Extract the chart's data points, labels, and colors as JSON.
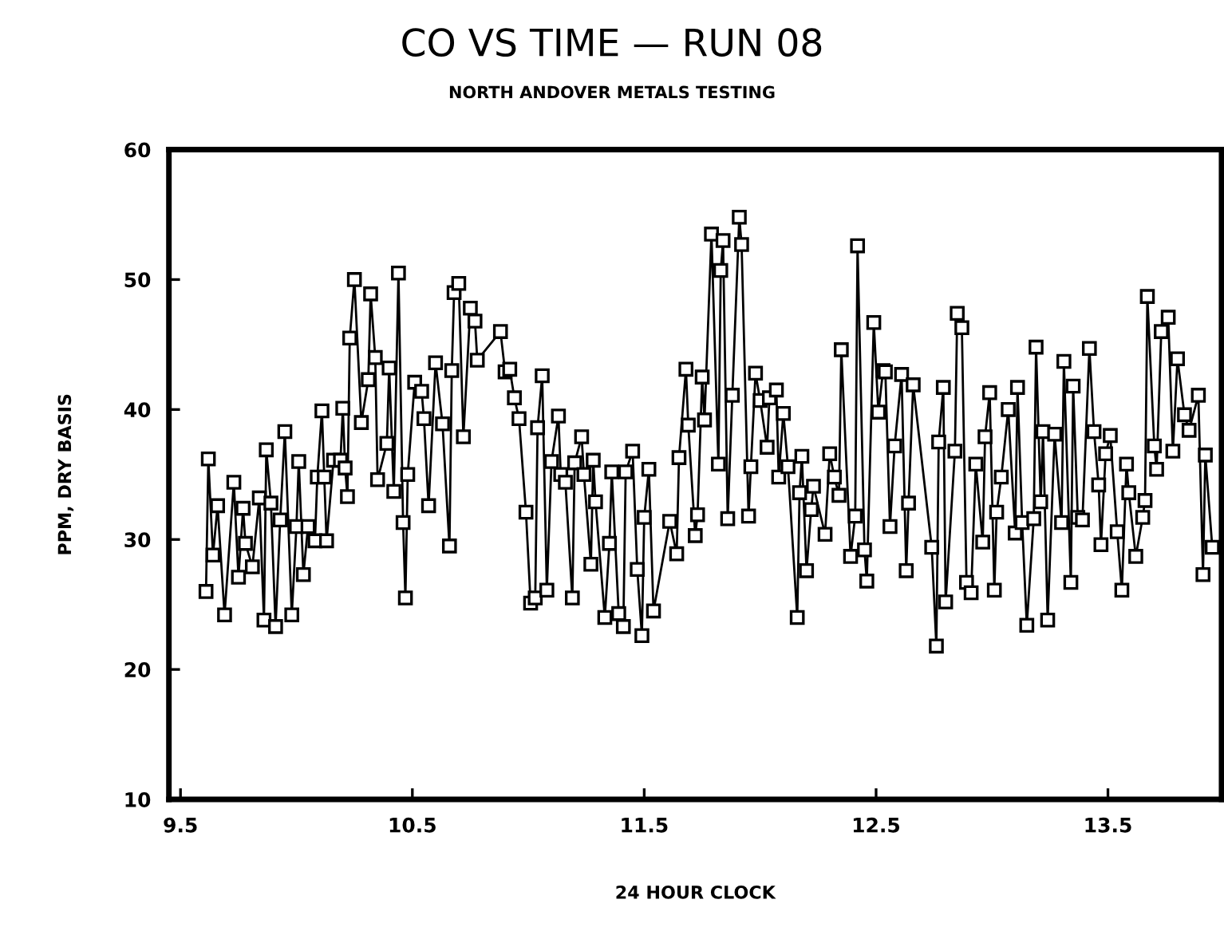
{
  "chart_data": {
    "type": "line",
    "title": "CO VS TIME — RUN 08",
    "subtitle": "NORTH ANDOVER METALS TESTING",
    "xlabel": "24 HOUR CLOCK",
    "ylabel": "PPM, DRY BASIS",
    "xlim": [
      9.45,
      13.99
    ],
    "xticks": [
      9.5,
      10.5,
      11.5,
      12.5,
      13.5
    ],
    "ylim": [
      10,
      60
    ],
    "yticks": [
      10,
      20,
      30,
      40,
      50,
      60
    ],
    "grid": false,
    "legend": false,
    "marker": "square",
    "line_style": "solid",
    "series": [
      {
        "color": "#000000",
        "x": [
          9.61,
          9.62,
          9.64,
          9.66,
          9.69,
          9.73,
          9.75,
          9.77,
          9.78,
          9.81,
          9.84,
          9.86,
          9.87,
          9.89,
          9.91,
          9.93,
          9.95,
          9.98,
          10.0,
          10.01,
          10.03,
          10.05,
          10.08,
          10.09,
          10.11,
          10.12,
          10.13,
          10.16,
          10.19,
          10.2,
          10.21,
          10.22,
          10.23,
          10.25,
          10.28,
          10.31,
          10.32,
          10.34,
          10.35,
          10.39,
          10.4,
          10.42,
          10.44,
          10.46,
          10.47,
          10.48,
          10.51,
          10.54,
          10.55,
          10.57,
          10.6,
          10.63,
          10.66,
          10.67,
          10.68,
          10.7,
          10.72,
          10.75,
          10.77,
          10.78,
          10.88,
          10.9,
          10.92,
          10.94,
          10.96,
          10.99,
          11.01,
          11.03,
          11.04,
          11.06,
          11.08,
          11.1,
          11.13,
          11.14,
          11.16,
          11.19,
          11.2,
          11.23,
          11.24,
          11.27,
          11.28,
          11.29,
          11.33,
          11.35,
          11.36,
          11.39,
          11.41,
          11.42,
          11.45,
          11.47,
          11.49,
          11.5,
          11.52,
          11.54,
          11.61,
          11.64,
          11.65,
          11.68,
          11.69,
          11.72,
          11.73,
          11.75,
          11.76,
          11.79,
          11.82,
          11.83,
          11.84,
          11.86,
          11.88,
          11.91,
          11.92,
          11.95,
          11.96,
          11.98,
          12.0,
          12.03,
          12.04,
          12.07,
          12.08,
          12.1,
          12.12,
          12.16,
          12.17,
          12.18,
          12.2,
          12.22,
          12.23,
          12.28,
          12.3,
          12.32,
          12.34,
          12.35,
          12.39,
          12.41,
          12.42,
          12.45,
          12.46,
          12.49,
          12.51,
          12.53,
          12.54,
          12.56,
          12.58,
          12.61,
          12.63,
          12.64,
          12.66,
          12.74,
          12.76,
          12.77,
          12.79,
          12.8,
          12.84,
          12.85,
          12.87,
          12.89,
          12.91,
          12.93,
          12.96,
          12.97,
          12.99,
          13.01,
          13.02,
          13.04,
          13.07,
          13.1,
          13.11,
          13.13,
          13.15,
          13.18,
          13.19,
          13.21,
          13.22,
          13.24,
          13.27,
          13.3,
          13.31,
          13.34,
          13.35,
          13.37,
          13.39,
          13.42,
          13.44,
          13.46,
          13.47,
          13.49,
          13.51,
          13.54,
          13.56,
          13.58,
          13.59,
          13.62,
          13.65,
          13.66,
          13.67,
          13.7,
          13.71,
          13.73,
          13.76,
          13.78,
          13.8,
          13.83,
          13.85,
          13.89,
          13.91,
          13.92,
          13.95
        ],
        "values": [
          26.0,
          36.2,
          28.8,
          32.6,
          24.2,
          34.4,
          27.1,
          32.4,
          29.7,
          27.9,
          33.2,
          23.8,
          36.9,
          32.8,
          23.3,
          31.5,
          38.3,
          24.2,
          31.0,
          36.0,
          27.3,
          31.0,
          29.9,
          34.8,
          39.9,
          34.8,
          29.9,
          36.1,
          36.1,
          40.1,
          35.5,
          33.3,
          45.5,
          50.0,
          39.0,
          42.3,
          48.9,
          44.0,
          34.6,
          37.4,
          43.2,
          33.7,
          50.5,
          31.3,
          25.5,
          35.0,
          42.1,
          41.4,
          39.3,
          32.6,
          43.6,
          38.9,
          29.5,
          43.0,
          49.0,
          49.7,
          37.9,
          47.8,
          46.8,
          43.8,
          46.0,
          42.9,
          43.1,
          40.9,
          39.3,
          32.1,
          25.1,
          25.5,
          38.6,
          42.6,
          26.1,
          36.0,
          39.5,
          35.0,
          34.4,
          25.5,
          35.9,
          37.9,
          35.0,
          28.1,
          36.1,
          32.9,
          24.0,
          29.7,
          35.2,
          24.3,
          23.3,
          35.2,
          36.8,
          27.7,
          22.6,
          31.7,
          35.4,
          24.5,
          31.4,
          28.9,
          36.3,
          43.1,
          38.8,
          30.3,
          31.9,
          42.5,
          39.2,
          53.5,
          35.8,
          50.7,
          53.0,
          31.6,
          41.1,
          54.8,
          52.7,
          31.8,
          35.6,
          42.8,
          40.7,
          37.1,
          40.9,
          41.5,
          34.8,
          39.7,
          35.6,
          24.0,
          33.6,
          36.4,
          27.6,
          32.3,
          34.1,
          30.4,
          36.6,
          34.8,
          33.4,
          44.6,
          28.7,
          31.8,
          52.6,
          29.2,
          26.8,
          46.7,
          39.8,
          43.0,
          42.9,
          31.0,
          37.2,
          42.7,
          27.6,
          32.8,
          41.9,
          29.4,
          21.8,
          37.5,
          41.7,
          25.2,
          36.8,
          47.4,
          46.3,
          26.7,
          25.9,
          35.8,
          29.8,
          37.9,
          41.3,
          26.1,
          32.1,
          34.8,
          40.0,
          30.5,
          41.7,
          31.3,
          23.4,
          31.6,
          44.8,
          32.9,
          38.3,
          23.8,
          38.1,
          31.3,
          43.7,
          26.7,
          41.8,
          31.7,
          31.5,
          44.7,
          38.3,
          34.2,
          29.6,
          36.6,
          38.0,
          30.6,
          26.1,
          35.8,
          33.6,
          28.7,
          31.7,
          33.0,
          48.7,
          37.2,
          35.4,
          46.0,
          47.1,
          36.8,
          43.9,
          39.6,
          38.4,
          41.1,
          27.3,
          36.5,
          29.4
        ]
      }
    ]
  }
}
